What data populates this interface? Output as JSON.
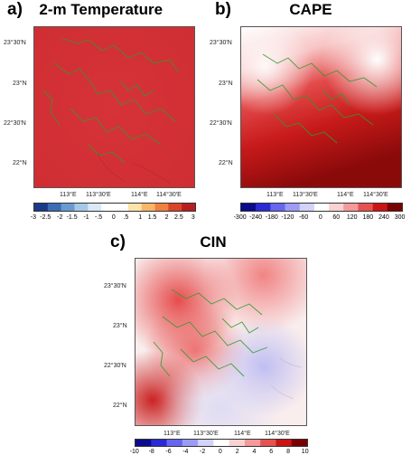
{
  "panels": {
    "a": {
      "letter": "a)",
      "title": "2-m Temperature",
      "colorbar_ticks": [
        "-3",
        "-2.5",
        "-2",
        "-1.5",
        "-1",
        "-.5",
        "0",
        ".5",
        "1",
        "1.5",
        "2",
        "2.5",
        "3"
      ],
      "colormap": [
        "#1b3a8a",
        "#3b6cb5",
        "#6a9bd0",
        "#a6c8e6",
        "#d9e9f5",
        "#ffffff",
        "#ffffff",
        "#fde4a8",
        "#f7b76a",
        "#ee8240",
        "#d9452a",
        "#b81e1e"
      ],
      "background": "#d8353a"
    },
    "b": {
      "letter": "b)",
      "title": "CAPE",
      "colorbar_ticks": [
        "-300",
        "-240",
        "-180",
        "-120",
        "-60",
        "0",
        "60",
        "120",
        "180",
        "240",
        "300"
      ],
      "colormap": [
        "#0b0b8c",
        "#2a2ad6",
        "#6666f0",
        "#9c9cf6",
        "#d2d2fb",
        "#ffffff",
        "#fbd2d2",
        "#f49a9a",
        "#e65252",
        "#cc1414",
        "#7a0000"
      ],
      "background": "#d21e24"
    },
    "c": {
      "letter": "c)",
      "title": "CIN",
      "colorbar_ticks": [
        "-10",
        "-8",
        "-6",
        "-4",
        "-2",
        "0",
        "2",
        "4",
        "6",
        "8",
        "10"
      ],
      "colormap": [
        "#0b0b8c",
        "#2a2ad6",
        "#6666f0",
        "#9c9cf6",
        "#d2d2fb",
        "#ffffff",
        "#fbd2d2",
        "#f49a9a",
        "#e65252",
        "#cc1414",
        "#7a0000"
      ],
      "background": "#f7e6e6"
    }
  },
  "lat_ticks": [
    "23°30'N",
    "23°N",
    "22°30'N",
    "22°N"
  ],
  "lon_ticks": [
    "113°E",
    "113°30'E",
    "114°E",
    "114°30'E"
  ],
  "coastline_color": "#2f9a2f"
}
